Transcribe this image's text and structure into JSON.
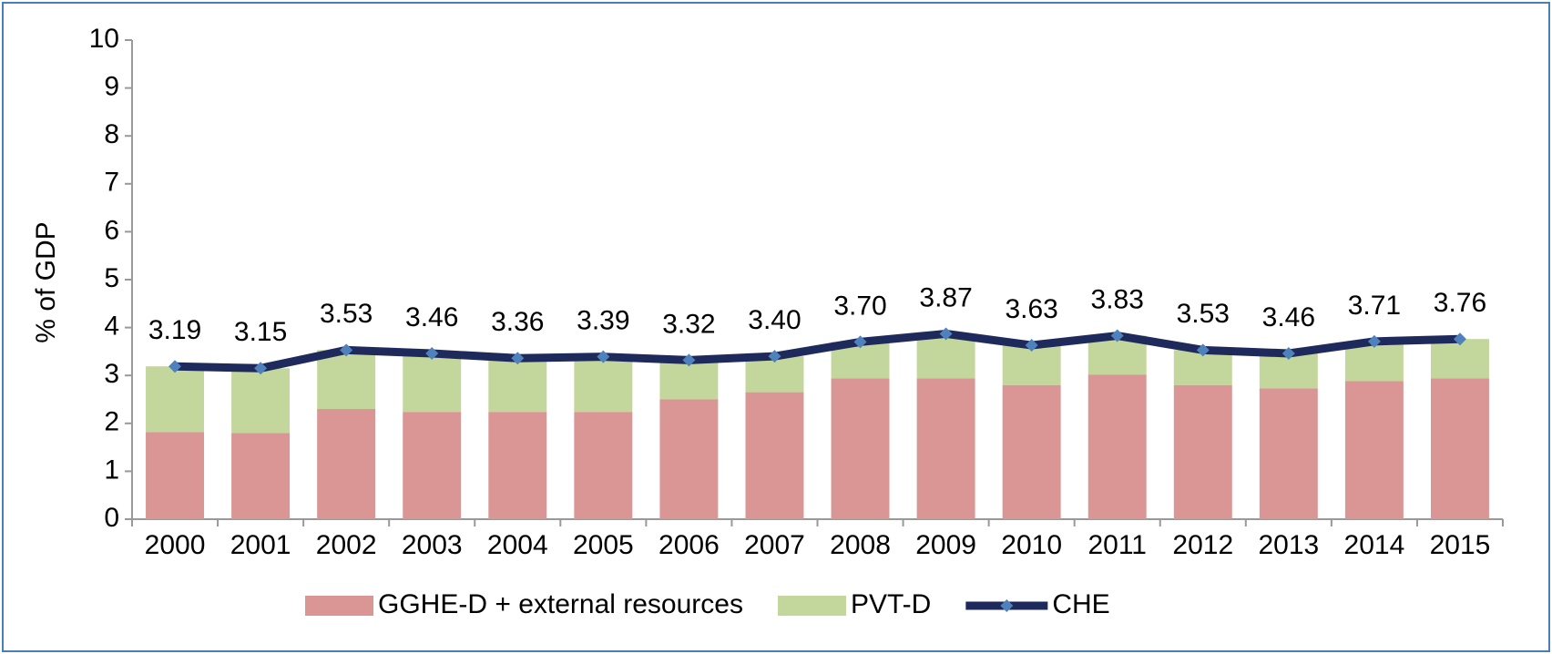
{
  "chart_data": {
    "type": "bar",
    "stacked": true,
    "y_label": "% of GDP",
    "categories": [
      "2000",
      "2001",
      "2002",
      "2003",
      "2004",
      "2005",
      "2006",
      "2007",
      "2008",
      "2009",
      "2010",
      "2011",
      "2012",
      "2013",
      "2014",
      "2015"
    ],
    "series": [
      {
        "name": "GGHE-D + external resources",
        "type": "bar",
        "color": "#d99694",
        "values": [
          1.82,
          1.8,
          2.3,
          2.24,
          2.24,
          2.24,
          2.5,
          2.65,
          2.94,
          2.94,
          2.8,
          3.02,
          2.8,
          2.73,
          2.88,
          2.94
        ]
      },
      {
        "name": "PVT-D",
        "type": "bar",
        "color": "#c3d69b",
        "values": [
          1.37,
          1.35,
          1.23,
          1.22,
          1.12,
          1.15,
          0.82,
          0.75,
          0.76,
          0.93,
          0.83,
          0.81,
          0.73,
          0.73,
          0.83,
          0.82
        ]
      },
      {
        "name": "CHE",
        "type": "line",
        "color": "#1f2a5c",
        "marker_color": "#4f81bd",
        "values": [
          3.19,
          3.15,
          3.53,
          3.46,
          3.36,
          3.39,
          3.32,
          3.4,
          3.7,
          3.87,
          3.63,
          3.83,
          3.53,
          3.46,
          3.71,
          3.76
        ],
        "value_labels": [
          "3.19",
          "3.15",
          "3.53",
          "3.46",
          "3.36",
          "3.39",
          "3.32",
          "3.40",
          "3.70",
          "3.87",
          "3.63",
          "3.83",
          "3.53",
          "3.46",
          "3.71",
          "3.76"
        ]
      }
    ],
    "ylim": [
      0,
      10
    ],
    "yticks": [
      0,
      1,
      2,
      3,
      4,
      5,
      6,
      7,
      8,
      9,
      10
    ],
    "grid": false,
    "legend": "bottom"
  }
}
